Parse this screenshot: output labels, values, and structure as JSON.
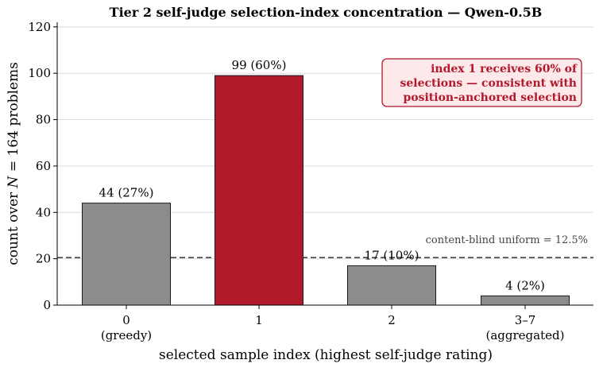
{
  "chart_data": {
    "type": "bar",
    "title": "Tier 2 self-judge selection-index concentration — Qwen-0.5B",
    "xlabel": "selected sample index (highest self-judge rating)",
    "ylabel_prefix": "count over ",
    "ylabel_var": "N",
    "ylabel_suffix": " = 164 problems",
    "ylim": [
      0,
      122
    ],
    "yticks": [
      0,
      20,
      40,
      60,
      80,
      100,
      120
    ],
    "grid": "horizontal",
    "categories": [
      {
        "label": "0",
        "sublabel": "(greedy)"
      },
      {
        "label": "1",
        "sublabel": ""
      },
      {
        "label": "2",
        "sublabel": ""
      },
      {
        "label": "3–7",
        "sublabel": "(aggregated)"
      }
    ],
    "values": [
      44,
      99,
      17,
      4
    ],
    "value_labels": [
      "44  (27%)",
      "99  (60%)",
      "17  (10%)",
      "4  (2%)"
    ],
    "colors": {
      "default_bar": "#8c8c8c",
      "highlight_bar": "#b2192b",
      "annotation_text": "#b2192b",
      "annotation_fill": "#fde8ea",
      "reference_line": "#444444"
    },
    "highlight_index": 1,
    "reference_line": {
      "value": 20.5,
      "label": "content-blind uniform = 12.5%"
    },
    "annotation": {
      "lines": [
        "index 1 receives 60% of",
        "selections — consistent with",
        "position-anchored selection"
      ]
    }
  }
}
